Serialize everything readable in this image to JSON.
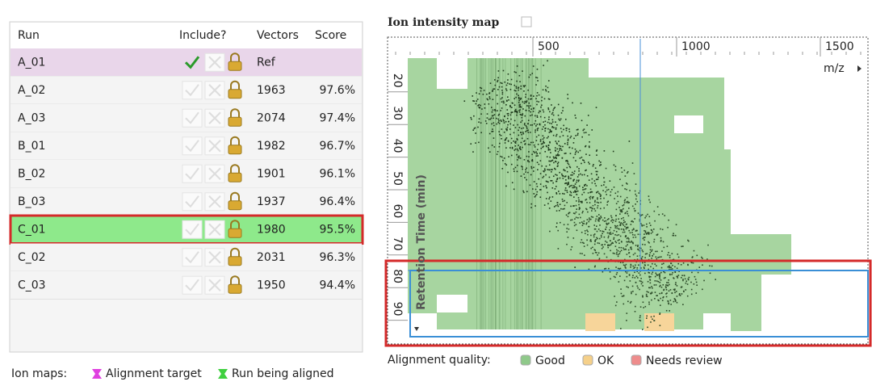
{
  "table": {
    "columns": [
      "Run",
      "Include?",
      "Vectors",
      "Score"
    ],
    "rows": [
      [
        "A_01",
        "Ref"
      ],
      [
        "A_02",
        "1963",
        "97.6%"
      ],
      [
        "A_03",
        "2074",
        "97.4%"
      ],
      [
        "B_01",
        "1982",
        "96.7%"
      ],
      [
        "B_02",
        "1901",
        "96.1%"
      ],
      [
        "B_03",
        "1937",
        "96.4%"
      ],
      [
        "C_01",
        "1980",
        "95.5%"
      ],
      [
        "C_02",
        "2031",
        "96.3%"
      ],
      [
        "C_03",
        "1950",
        "94.4%"
      ]
    ]
  },
  "ion_maps": {
    "label": "Ion maps:",
    "items": [
      "Alignment target",
      "Run being aligned"
    ]
  },
  "map": {
    "title": "Ion intensity map",
    "x_axis_label": "m/z",
    "y_axis_label": "Retention Time (min)",
    "xticks": [
      500,
      1000,
      1500
    ],
    "yticks": [
      20,
      30,
      40,
      50,
      60,
      70,
      80,
      90
    ]
  },
  "quality_legend": {
    "label": "Alignment quality:",
    "items": [
      "Good",
      "OK",
      "Needs review"
    ]
  }
}
